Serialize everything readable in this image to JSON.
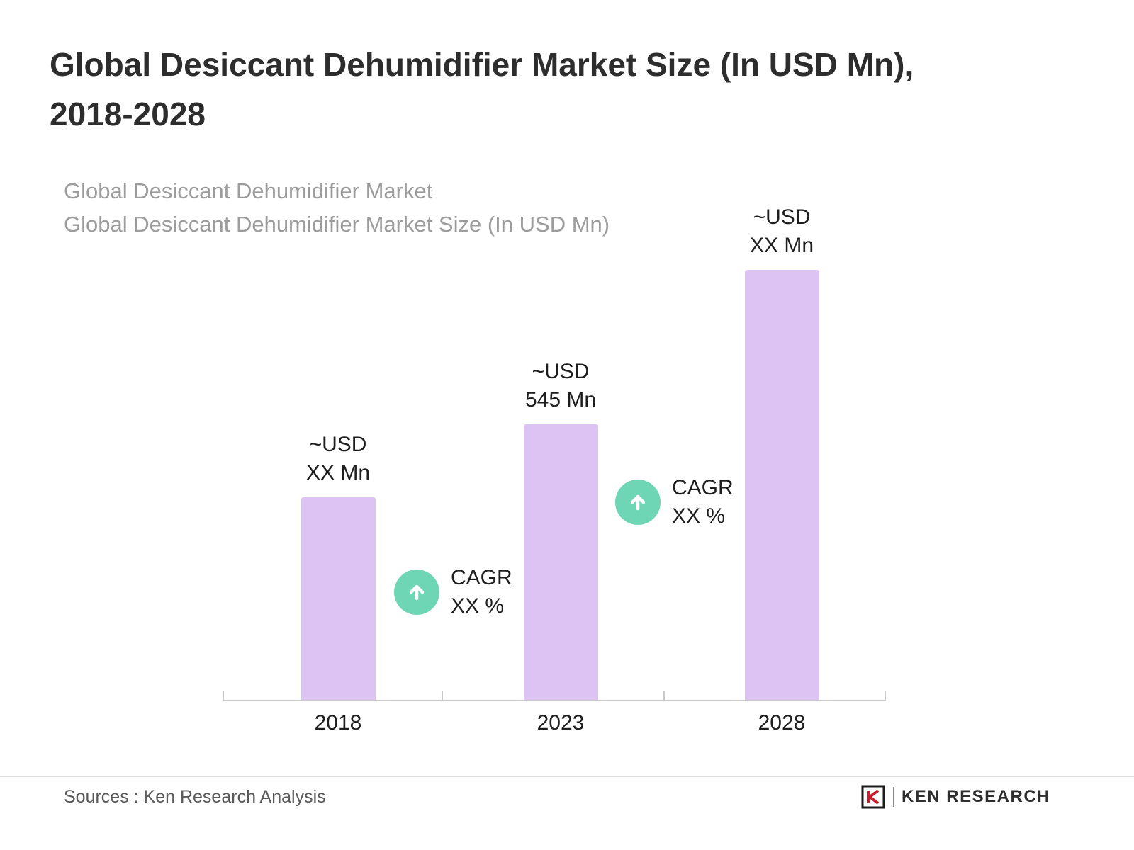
{
  "header": {
    "title_line1": "Global Desiccant Dehumidifier Market Size (In USD Mn),",
    "title_line2": "2018-2028",
    "subtitle_line1": "Global Desiccant Dehumidifier Market",
    "subtitle_line2": "Global Desiccant Dehumidifier Market Size (In USD Mn)"
  },
  "chart_data": {
    "type": "bar",
    "title": "Global Desiccant Dehumidifier Market Size (In USD Mn), 2018-2028",
    "categories": [
      "2018",
      "2023",
      "2028"
    ],
    "values": [
      400,
      545,
      850
    ],
    "value_labels": [
      [
        "~USD",
        "XX Mn"
      ],
      [
        "~USD",
        "545 Mn"
      ],
      [
        "~USD",
        "XX Mn"
      ]
    ],
    "ylim": [
      0,
      900
    ],
    "grid": "off",
    "legend": "none",
    "cagr_badges": [
      {
        "line1": "CAGR",
        "line2": "XX %",
        "between": [
          "2018",
          "2023"
        ]
      },
      {
        "line1": "CAGR",
        "line2": "XX %",
        "between": [
          "2023",
          "2028"
        ]
      }
    ]
  },
  "footer": {
    "sources": "Sources : Ken Research Analysis",
    "logo_text": "KEN RESEARCH"
  },
  "colors": {
    "bar": "#ddc2f4",
    "badge": "#6fd6b5",
    "title_text": "#2d2d2d",
    "subtitle_text": "#9c9c9c",
    "axis": "#c9c9c9",
    "logo_red": "#c8202f"
  }
}
